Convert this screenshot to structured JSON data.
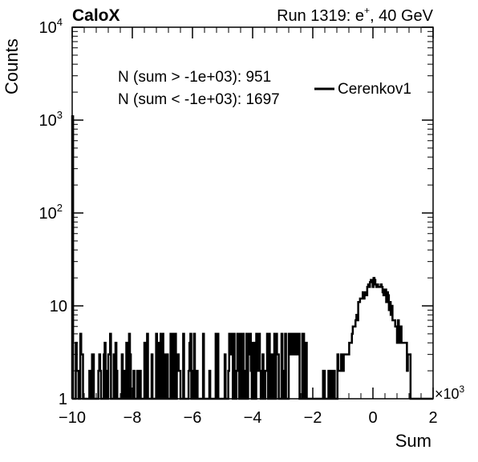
{
  "header": {
    "brand": "CaloX",
    "run_label": "Run 1319: e",
    "run_sup": "+",
    "run_energy": ", 40 GeV"
  },
  "chart_data": {
    "type": "histogram",
    "xlabel": "Sum",
    "ylabel": "Counts",
    "x_multiplier_base": "×10",
    "x_multiplier_exp": "3",
    "xlim": [
      -10,
      2
    ],
    "ylim": [
      1,
      10000
    ],
    "yscale": "log",
    "xticks": [
      -10,
      -8,
      -6,
      -4,
      -2,
      0,
      2
    ],
    "xtick_labels": [
      "−10",
      "−8",
      "−6",
      "−4",
      "−2",
      "0",
      "2"
    ],
    "ytick_labels": [
      {
        "value": 1,
        "base": "1",
        "exp": ""
      },
      {
        "value": 10,
        "base": "10",
        "exp": ""
      },
      {
        "value": 100,
        "base": "10",
        "exp": "2"
      },
      {
        "value": 1000,
        "base": "10",
        "exp": "3"
      },
      {
        "value": 10000,
        "base": "10",
        "exp": "4"
      }
    ],
    "annotations": [
      "N (sum > -1e+03): 951",
      "N (sum < -1e+03): 1697"
    ],
    "legend": {
      "placement": "top-right",
      "entries": [
        "Cerenkov1"
      ]
    },
    "series": [
      {
        "name": "Cerenkov1",
        "bin_width": 0.03,
        "spike": {
          "x": -10,
          "count": 1100
        },
        "background": {
          "range": [
            -10,
            -2.2
          ],
          "typical_max": 5
        },
        "peak": {
          "x": [
            -1.4,
            -1.2,
            -1.0,
            -0.8,
            -0.6,
            -0.4,
            -0.2,
            0.0,
            0.2,
            0.4,
            0.6,
            0.8,
            1.0,
            1.2,
            1.4
          ],
          "counts": [
            1,
            2,
            3,
            4,
            7,
            11,
            15,
            18,
            17,
            14,
            10,
            6,
            4,
            3,
            1
          ]
        }
      }
    ]
  }
}
